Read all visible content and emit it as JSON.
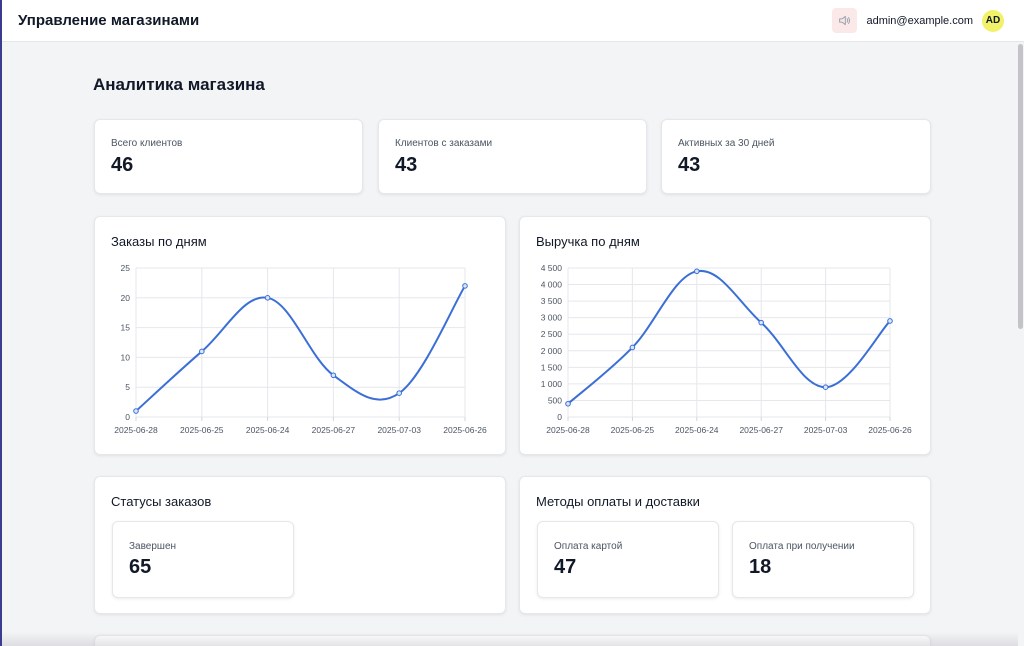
{
  "header": {
    "title": "Управление магазинами",
    "user_email": "admin@example.com",
    "avatar_initials": "AD",
    "sound_icon": "speaker-icon"
  },
  "page": {
    "title": "Аналитика магазина"
  },
  "stats": [
    {
      "label": "Всего клиентов",
      "value": "46"
    },
    {
      "label": "Клиентов с заказами",
      "value": "43"
    },
    {
      "label": "Активных за 30 дней",
      "value": "43"
    }
  ],
  "orders_chart": {
    "title": "Заказы по дням"
  },
  "revenue_chart": {
    "title": "Выручка по дням"
  },
  "chart_data": [
    {
      "type": "line",
      "title": "Заказы по дням",
      "categories": [
        "2025-06-28",
        "2025-06-25",
        "2025-06-24",
        "2025-06-27",
        "2025-07-03",
        "2025-06-26"
      ],
      "values": [
        1,
        11,
        20,
        7,
        4,
        22
      ],
      "ylim": [
        0,
        25
      ],
      "yticks": [
        "0",
        "5",
        "10",
        "15",
        "20",
        "25"
      ],
      "color": "#3b6fd6",
      "grid": true
    },
    {
      "type": "line",
      "title": "Выручка по дням",
      "categories": [
        "2025-06-28",
        "2025-06-25",
        "2025-06-24",
        "2025-06-27",
        "2025-07-03",
        "2025-06-26"
      ],
      "values": [
        400,
        2100,
        4400,
        2850,
        900,
        2900
      ],
      "ylim": [
        0,
        4500
      ],
      "yticks": [
        "0",
        "500",
        "1 000",
        "1 500",
        "2 000",
        "2 500",
        "3 000",
        "3 500",
        "4 000",
        "4 500"
      ],
      "color": "#3b6fd6",
      "grid": true
    }
  ],
  "statuses": {
    "title": "Статусы заказов",
    "items": [
      {
        "label": "Завершен",
        "value": "65"
      }
    ]
  },
  "methods": {
    "title": "Методы оплаты и доставки",
    "items": [
      {
        "label": "Оплата картой",
        "value": "47"
      },
      {
        "label": "Оплата при получении",
        "value": "18"
      }
    ]
  }
}
